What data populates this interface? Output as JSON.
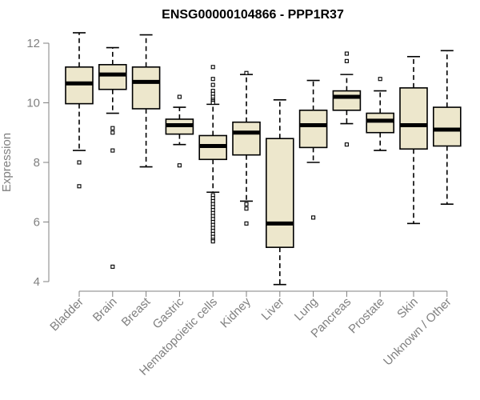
{
  "chart_data": {
    "type": "boxplot",
    "title": "ENSG00000104866 - PPP1R37",
    "xlabel": "",
    "ylabel": "Expression",
    "ylim": [
      4,
      12
    ],
    "yticks": [
      4,
      6,
      8,
      10,
      12
    ],
    "grid": false,
    "colors": {
      "box_fill": "#ede7cc",
      "box_stroke": "#000000",
      "axis": "#808080"
    },
    "categories": [
      "Bladder",
      "Brain",
      "Breast",
      "Gastric",
      "Hematopoietic cells",
      "Kidney",
      "Liver",
      "Lung",
      "Pancreas",
      "Prostate",
      "Skin",
      "Unknown / Other"
    ],
    "boxes": [
      {
        "name": "Bladder",
        "lower_whisker": 8.4,
        "q1": 9.97,
        "median": 10.65,
        "q3": 11.2,
        "upper_whisker": 12.35,
        "outliers": [
          8.0,
          7.2
        ]
      },
      {
        "name": "Brain",
        "lower_whisker": 9.65,
        "q1": 10.45,
        "median": 10.95,
        "q3": 11.28,
        "upper_whisker": 11.85,
        "outliers": [
          9.15,
          9.0,
          8.4,
          4.5
        ]
      },
      {
        "name": "Breast",
        "lower_whisker": 7.85,
        "q1": 9.8,
        "median": 10.7,
        "q3": 11.2,
        "upper_whisker": 12.28,
        "outliers": []
      },
      {
        "name": "Gastric",
        "lower_whisker": 8.6,
        "q1": 8.95,
        "median": 9.25,
        "q3": 9.45,
        "upper_whisker": 9.85,
        "outliers": [
          10.2,
          7.9
        ]
      },
      {
        "name": "Hematopoietic cells",
        "lower_whisker": 7.0,
        "q1": 8.1,
        "median": 8.55,
        "q3": 8.9,
        "upper_whisker": 9.95,
        "outliers": [
          11.2,
          10.8,
          10.6,
          10.4,
          10.3,
          10.2,
          10.1,
          10.05,
          10.0,
          6.9,
          6.8,
          6.7,
          6.6,
          6.5,
          6.4,
          6.3,
          6.2,
          6.1,
          6.0,
          5.9,
          5.8,
          5.7,
          5.6,
          5.5,
          5.4,
          5.35
        ]
      },
      {
        "name": "Kidney",
        "lower_whisker": 6.7,
        "q1": 8.25,
        "median": 9.0,
        "q3": 9.35,
        "upper_whisker": 10.95,
        "outliers": [
          11.0,
          6.6,
          6.45,
          5.95
        ]
      },
      {
        "name": "Liver",
        "lower_whisker": 3.9,
        "q1": 5.15,
        "median": 5.95,
        "q3": 8.8,
        "upper_whisker": 10.1,
        "outliers": []
      },
      {
        "name": "Lung",
        "lower_whisker": 8.0,
        "q1": 8.5,
        "median": 9.25,
        "q3": 9.75,
        "upper_whisker": 10.75,
        "outliers": [
          6.15
        ]
      },
      {
        "name": "Pancreas",
        "lower_whisker": 9.3,
        "q1": 9.75,
        "median": 10.2,
        "q3": 10.4,
        "upper_whisker": 10.95,
        "outliers": [
          11.65,
          11.4,
          8.6
        ]
      },
      {
        "name": "Prostate",
        "lower_whisker": 8.4,
        "q1": 9.0,
        "median": 9.4,
        "q3": 9.65,
        "upper_whisker": 10.4,
        "outliers": [
          10.8
        ]
      },
      {
        "name": "Skin",
        "lower_whisker": 5.95,
        "q1": 8.45,
        "median": 9.25,
        "q3": 10.5,
        "upper_whisker": 11.55,
        "outliers": []
      },
      {
        "name": "Unknown / Other",
        "lower_whisker": 6.6,
        "q1": 8.55,
        "median": 9.1,
        "q3": 9.85,
        "upper_whisker": 11.75,
        "outliers": []
      }
    ]
  }
}
